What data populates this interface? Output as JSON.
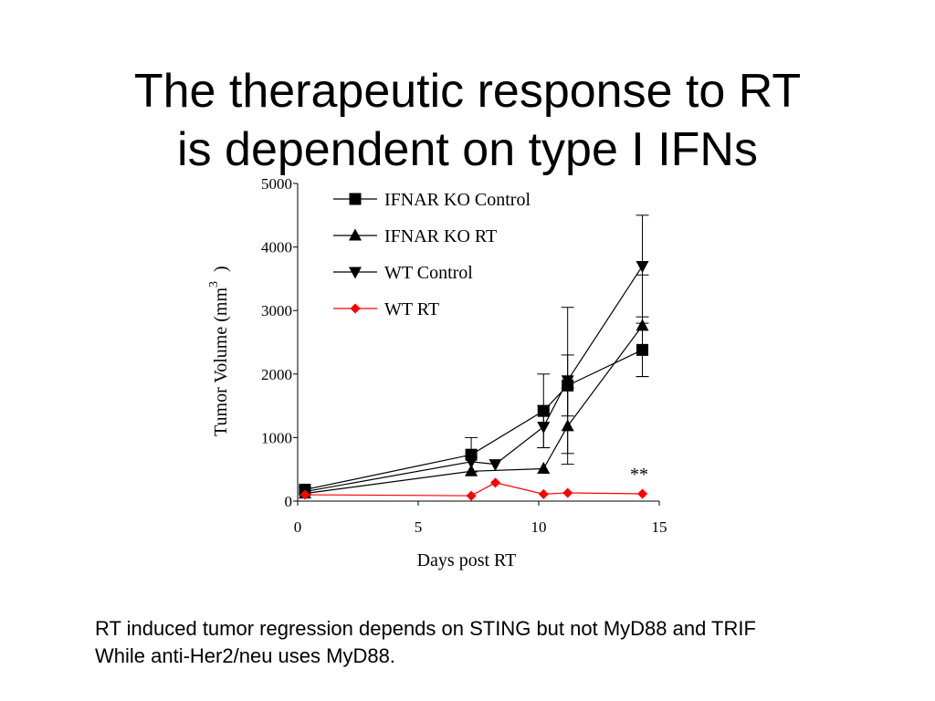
{
  "slide": {
    "title_line1": "The therapeutic response to RT",
    "title_line2": "is dependent on type I IFNs",
    "caption_line1": "RT induced tumor regression depends on STING but not MyD88 and TRIF",
    "caption_line2": "While anti-Her2/neu uses MyD88."
  },
  "chart_data": {
    "type": "line",
    "xlabel": "Days post RT",
    "ylabel": "Tumor Volume (mm",
    "ylabel_superscript": "3",
    "ylabel_close": ")",
    "xlim": [
      0,
      15
    ],
    "ylim": [
      0,
      5000
    ],
    "xticks": [
      0,
      5,
      10,
      15
    ],
    "yticks": [
      0,
      1000,
      2000,
      3000,
      4000,
      5000
    ],
    "grid": false,
    "legend_position": "top-left",
    "annotation": "**",
    "series": [
      {
        "name": "IFNAR KO Control",
        "marker": "square",
        "color": "#000000",
        "points": [
          {
            "x": 0.3,
            "y": 180,
            "err": 0
          },
          {
            "x": 7.2,
            "y": 730,
            "err": 270
          },
          {
            "x": 10.2,
            "y": 1420,
            "err": 580
          },
          {
            "x": 11.2,
            "y": 1820,
            "err": 480
          },
          {
            "x": 14.3,
            "y": 2380,
            "err": 420
          }
        ]
      },
      {
        "name": "IFNAR KO RT",
        "marker": "triangle-up",
        "color": "#000000",
        "points": [
          {
            "x": 0.3,
            "y": 120,
            "err": 0
          },
          {
            "x": 7.2,
            "y": 470,
            "err": 0
          },
          {
            "x": 10.2,
            "y": 510,
            "err": 0
          },
          {
            "x": 11.2,
            "y": 1180,
            "err": 600
          },
          {
            "x": 14.3,
            "y": 2760,
            "err": 800
          }
        ]
      },
      {
        "name": "WT Control",
        "marker": "triangle-down",
        "color": "#000000",
        "points": [
          {
            "x": 0.3,
            "y": 150,
            "err": 0
          },
          {
            "x": 7.2,
            "y": 620,
            "err": 0
          },
          {
            "x": 8.2,
            "y": 580,
            "err": 0
          },
          {
            "x": 10.2,
            "y": 1170,
            "err": 330
          },
          {
            "x": 11.2,
            "y": 1900,
            "err": 1150
          },
          {
            "x": 14.3,
            "y": 3700,
            "err": 800
          }
        ]
      },
      {
        "name": "WT RT",
        "marker": "diamond",
        "color": "#ff0000",
        "points": [
          {
            "x": 0.3,
            "y": 100,
            "err": 0
          },
          {
            "x": 7.2,
            "y": 85,
            "err": 0
          },
          {
            "x": 8.2,
            "y": 290,
            "err": 0
          },
          {
            "x": 10.2,
            "y": 110,
            "err": 0
          },
          {
            "x": 11.2,
            "y": 130,
            "err": 0
          },
          {
            "x": 14.3,
            "y": 115,
            "err": 0
          }
        ]
      }
    ]
  }
}
